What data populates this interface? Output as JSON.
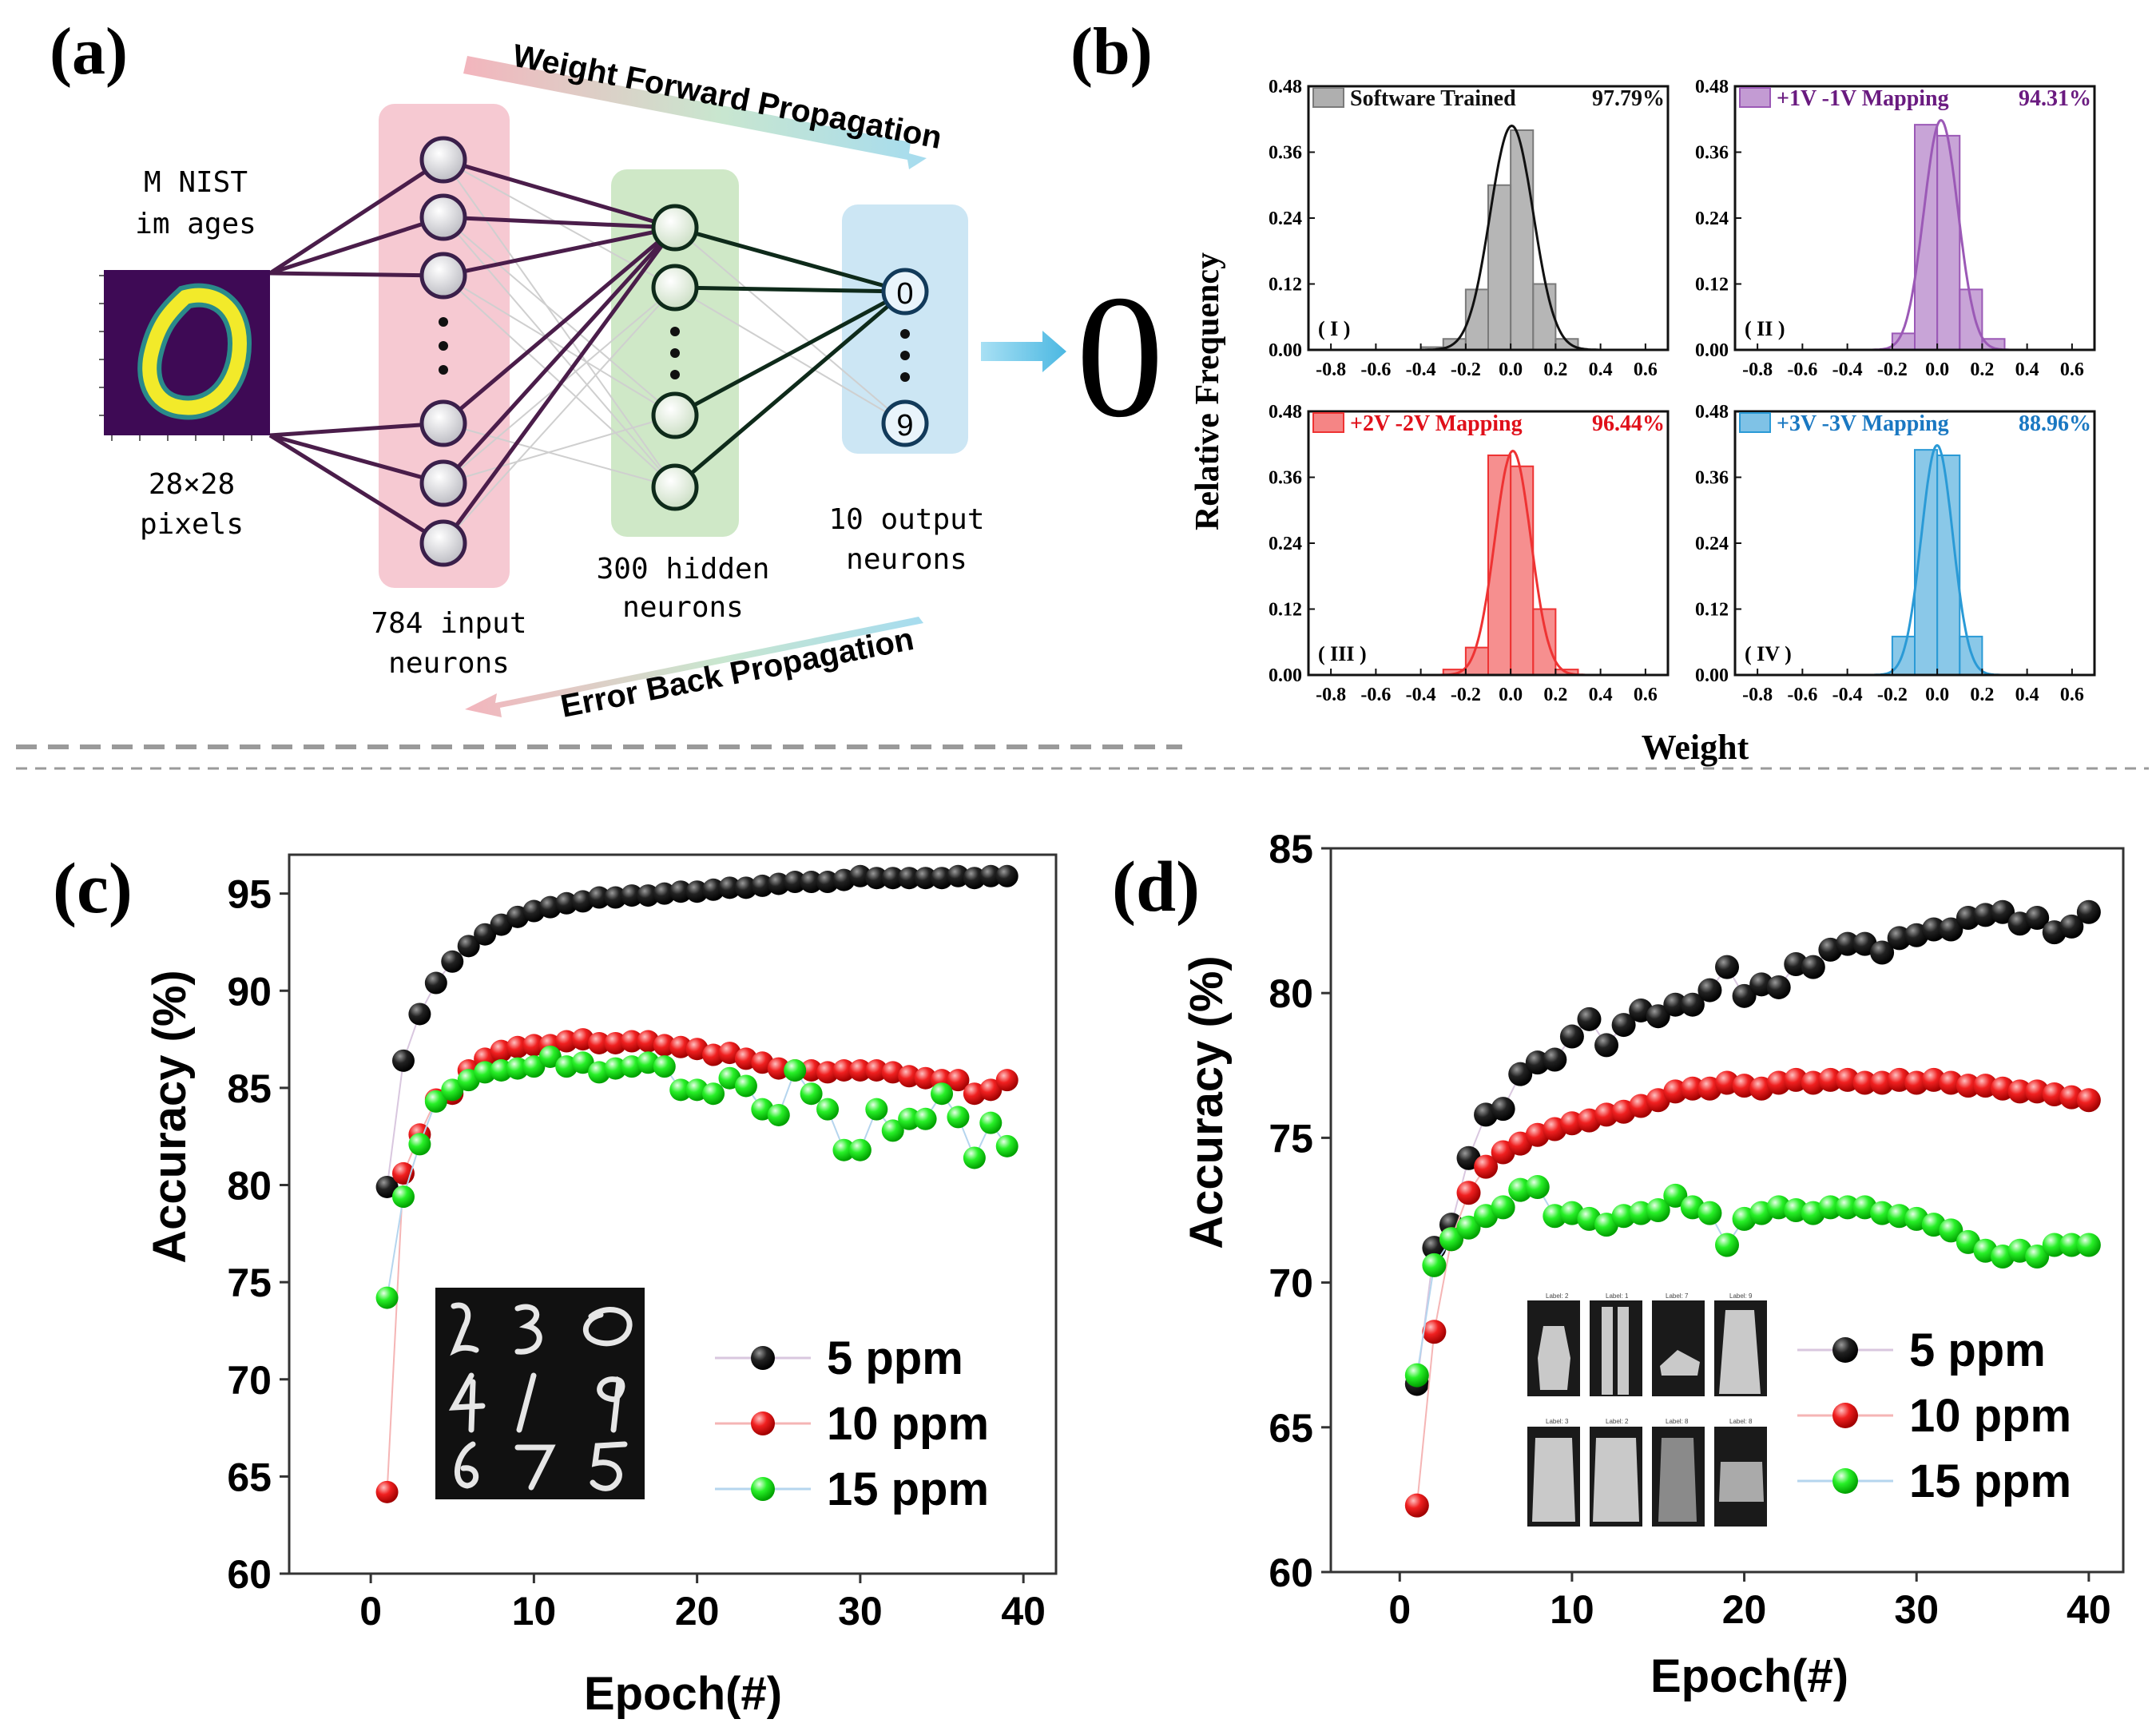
{
  "panel_labels": {
    "a": "(a)",
    "b": "(b)",
    "c": "(c)",
    "d": "(d)"
  },
  "network": {
    "mnist_line1": "M NIST",
    "mnist_line2": "im ages",
    "pixels_line1": "28×28",
    "pixels_line2": "pixels",
    "input_line1": "784 input",
    "input_line2": "neurons",
    "hidden_line1": "300 hidden",
    "hidden_line2": "neurons",
    "output_line1": "10 output",
    "output_line2": "neurons",
    "forward_label": "Weight Forward Propagation",
    "back_label": "Error Back Propagation",
    "output_first": "0",
    "output_last": "9",
    "predicted_digit": "0",
    "colors": {
      "input": "#f6c9d2",
      "hidden": "#cfe8c7",
      "output": "#cce6f4",
      "arrow": "#5ec2e6",
      "edge": "#4a1d4a"
    }
  },
  "chart_data": [
    {
      "id": "b",
      "type": "bar",
      "ylabel": "Relative Frequency",
      "xlabel": "Weight",
      "xlim": [
        -0.9,
        0.7
      ],
      "ylim": [
        0,
        0.48
      ],
      "xticks": [
        -0.8,
        -0.6,
        -0.4,
        -0.2,
        0.0,
        0.2,
        0.4,
        0.6
      ],
      "xtick_labels": [
        "-0.8",
        "-0.6",
        "-0.4",
        "-0.2",
        "0.0",
        "0.2",
        "0.4",
        "0.6"
      ],
      "yticks": [
        0,
        0.12,
        0.24,
        0.36,
        0.48
      ],
      "ytick_labels": [
        "0.00",
        "0.12",
        "0.24",
        "0.36",
        "0.48"
      ],
      "subplots": [
        {
          "roman": "( I )",
          "legend": "Software Trained",
          "accuracy": "97.79%",
          "color": "#7a7a7a",
          "text_color": "#111111",
          "bin_centers": [
            -0.35,
            -0.25,
            -0.15,
            -0.05,
            0.05,
            0.15,
            0.25
          ],
          "values": [
            0.005,
            0.02,
            0.11,
            0.3,
            0.4,
            0.12,
            0.02
          ]
        },
        {
          "roman": "( II )",
          "legend": "+1V -1V Mapping",
          "accuracy": "94.31%",
          "color": "#9b59b6",
          "text_color": "#6a1b80",
          "bin_centers": [
            -0.15,
            -0.05,
            0.05,
            0.15,
            0.25
          ],
          "values": [
            0.03,
            0.41,
            0.39,
            0.11,
            0.02
          ]
        },
        {
          "roman": "( III )",
          "legend": "+2V -2V Mapping",
          "accuracy": "96.44%",
          "color": "#ee3333",
          "text_color": "#e0101a",
          "bin_centers": [
            -0.25,
            -0.15,
            -0.05,
            0.05,
            0.15,
            0.25
          ],
          "values": [
            0.01,
            0.05,
            0.4,
            0.38,
            0.12,
            0.01
          ]
        },
        {
          "roman": "( IV )",
          "legend": "+3V -3V Mapping",
          "accuracy": "88.96%",
          "color": "#2a9ad6",
          "text_color": "#1a78c2",
          "bin_centers": [
            -0.15,
            -0.05,
            0.05,
            0.15
          ],
          "values": [
            0.07,
            0.41,
            0.4,
            0.07
          ]
        }
      ]
    },
    {
      "id": "c",
      "type": "scatter",
      "xlabel": "Epoch(#)",
      "ylabel": "Accuracy (%)",
      "xlim": [
        -5,
        42
      ],
      "ylim": [
        60,
        97
      ],
      "xticks": [
        0,
        10,
        20,
        30,
        40
      ],
      "yticks": [
        60,
        65,
        70,
        75,
        80,
        85,
        90,
        95
      ],
      "series": [
        {
          "name": "5 ppm",
          "color": "#111111",
          "x": [
            1,
            2,
            3,
            4,
            5,
            6,
            7,
            8,
            9,
            10,
            11,
            12,
            13,
            14,
            15,
            16,
            17,
            18,
            19,
            20,
            21,
            22,
            23,
            24,
            25,
            26,
            27,
            28,
            29,
            30,
            31,
            32,
            33,
            34,
            35,
            36,
            37,
            38,
            39
          ],
          "y": [
            79.9,
            86.4,
            88.8,
            90.4,
            91.5,
            92.3,
            92.9,
            93.4,
            93.8,
            94.1,
            94.3,
            94.5,
            94.6,
            94.8,
            94.8,
            94.9,
            94.9,
            95.0,
            95.1,
            95.1,
            95.2,
            95.3,
            95.3,
            95.4,
            95.5,
            95.6,
            95.6,
            95.6,
            95.7,
            95.9,
            95.8,
            95.8,
            95.8,
            95.8,
            95.8,
            95.9,
            95.8,
            95.9,
            95.9
          ]
        },
        {
          "name": "10 ppm",
          "color": "#ee1c1c",
          "x": [
            1,
            2,
            3,
            4,
            5,
            6,
            7,
            8,
            9,
            10,
            11,
            12,
            13,
            14,
            15,
            16,
            17,
            18,
            19,
            20,
            21,
            22,
            23,
            24,
            25,
            26,
            27,
            28,
            29,
            30,
            31,
            32,
            33,
            34,
            35,
            36,
            37,
            38,
            39
          ],
          "y": [
            64.2,
            80.6,
            82.6,
            84.4,
            84.7,
            85.9,
            86.5,
            86.9,
            87.1,
            87.2,
            87.2,
            87.4,
            87.5,
            87.3,
            87.3,
            87.4,
            87.4,
            87.2,
            87.1,
            87.0,
            86.7,
            86.8,
            86.5,
            86.3,
            86.0,
            85.9,
            85.9,
            85.8,
            85.9,
            85.9,
            85.9,
            85.8,
            85.6,
            85.5,
            85.4,
            85.4,
            84.7,
            84.9,
            85.4
          ]
        },
        {
          "name": "15 ppm",
          "color": "#22ee22",
          "x": [
            1,
            2,
            3,
            4,
            5,
            6,
            7,
            8,
            9,
            10,
            11,
            12,
            13,
            14,
            15,
            16,
            17,
            18,
            19,
            20,
            21,
            22,
            23,
            24,
            25,
            26,
            27,
            28,
            29,
            30,
            31,
            32,
            33,
            34,
            35,
            36,
            37,
            38,
            39
          ],
          "y": [
            74.2,
            79.4,
            82.1,
            84.3,
            84.9,
            85.4,
            85.8,
            85.9,
            86.0,
            86.1,
            86.6,
            86.1,
            86.3,
            85.8,
            86.0,
            86.1,
            86.3,
            86.1,
            84.9,
            84.9,
            84.7,
            85.5,
            85.1,
            83.9,
            83.6,
            85.9,
            84.7,
            83.9,
            81.8,
            81.8,
            83.9,
            82.8,
            83.4,
            83.4,
            84.7,
            83.5,
            81.4,
            83.2,
            82.0
          ]
        }
      ]
    },
    {
      "id": "d",
      "type": "scatter",
      "xlabel": "Epoch(#)",
      "ylabel": "Accuracy (%)",
      "xlim": [
        -4,
        42
      ],
      "ylim": [
        60,
        85
      ],
      "xticks": [
        0,
        10,
        20,
        30,
        40
      ],
      "yticks": [
        60,
        65,
        70,
        75,
        80,
        85
      ],
      "series": [
        {
          "name": "5 ppm",
          "color": "#111111",
          "x": [
            1,
            2,
            3,
            4,
            5,
            6,
            7,
            8,
            9,
            10,
            11,
            12,
            13,
            14,
            15,
            16,
            17,
            18,
            19,
            20,
            21,
            22,
            23,
            24,
            25,
            26,
            27,
            28,
            29,
            30,
            31,
            32,
            33,
            34,
            35,
            36,
            37,
            38,
            39,
            40
          ],
          "y": [
            66.5,
            71.2,
            72.0,
            74.3,
            75.8,
            76.0,
            77.2,
            77.6,
            77.7,
            78.5,
            79.1,
            78.2,
            78.9,
            79.4,
            79.2,
            79.6,
            79.6,
            80.1,
            80.9,
            79.9,
            80.3,
            80.2,
            81.0,
            80.9,
            81.5,
            81.7,
            81.7,
            81.4,
            81.9,
            82.0,
            82.2,
            82.2,
            82.6,
            82.7,
            82.8,
            82.4,
            82.6,
            82.1,
            82.3,
            82.8
          ]
        },
        {
          "name": "10 ppm",
          "color": "#ee1c1c",
          "x": [
            1,
            2,
            3,
            4,
            5,
            6,
            7,
            8,
            9,
            10,
            11,
            12,
            13,
            14,
            15,
            16,
            17,
            18,
            19,
            20,
            21,
            22,
            23,
            24,
            25,
            26,
            27,
            28,
            29,
            30,
            31,
            32,
            33,
            34,
            35,
            36,
            37,
            38,
            39,
            40
          ],
          "y": [
            62.3,
            68.3,
            71.5,
            73.1,
            74.0,
            74.5,
            74.8,
            75.1,
            75.3,
            75.5,
            75.6,
            75.8,
            75.9,
            76.1,
            76.3,
            76.6,
            76.7,
            76.7,
            76.9,
            76.8,
            76.7,
            76.9,
            77.0,
            76.9,
            77.0,
            77.0,
            76.9,
            76.9,
            77.0,
            76.9,
            77.0,
            76.9,
            76.8,
            76.8,
            76.7,
            76.6,
            76.6,
            76.5,
            76.4,
            76.3
          ]
        },
        {
          "name": "15 ppm",
          "color": "#22ee22",
          "x": [
            1,
            2,
            3,
            4,
            5,
            6,
            7,
            8,
            9,
            10,
            11,
            12,
            13,
            14,
            15,
            16,
            17,
            18,
            19,
            20,
            21,
            22,
            23,
            24,
            25,
            26,
            27,
            28,
            29,
            30,
            31,
            32,
            33,
            34,
            35,
            36,
            37,
            38,
            39,
            40
          ],
          "y": [
            66.8,
            70.6,
            71.5,
            71.9,
            72.3,
            72.6,
            73.2,
            73.3,
            72.3,
            72.4,
            72.2,
            72.0,
            72.3,
            72.4,
            72.5,
            73.0,
            72.6,
            72.4,
            71.3,
            72.2,
            72.4,
            72.6,
            72.5,
            72.4,
            72.6,
            72.6,
            72.6,
            72.4,
            72.3,
            72.2,
            72.0,
            71.8,
            71.4,
            71.1,
            70.9,
            71.1,
            70.9,
            71.3,
            71.3,
            71.3
          ]
        }
      ]
    }
  ]
}
